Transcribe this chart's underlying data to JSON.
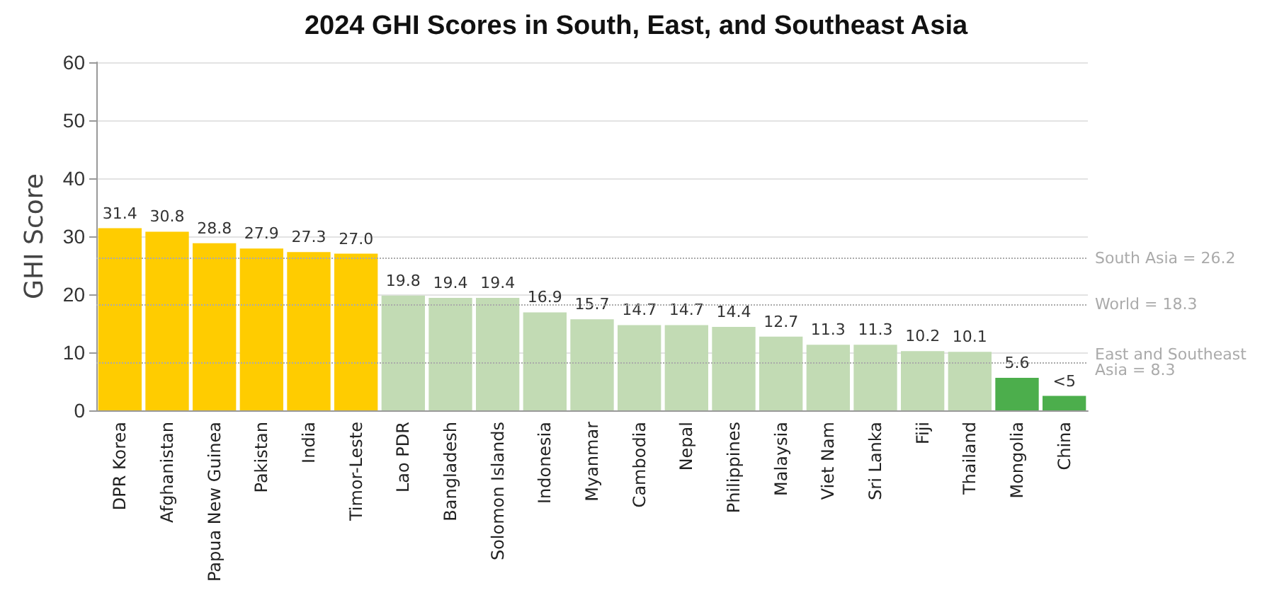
{
  "chart_data": {
    "type": "bar",
    "title": "2024 GHI Scores in South, East, and Southeast Asia",
    "ylabel": "GHI Score",
    "categories": [
      "DPR Korea",
      "Afghanistan",
      "Papua New Guinea",
      "Pakistan",
      "India",
      "Timor-Leste",
      "Lao PDR",
      "Bangladesh",
      "Solomon Islands",
      "Indonesia",
      "Myanmar",
      "Cambodia",
      "Nepal",
      "Philippines",
      "Malaysia",
      "Viet Nam",
      "Sri Lanka",
      "Fiji",
      "Thailand",
      "Mongolia",
      "China"
    ],
    "values": [
      31.4,
      30.8,
      28.8,
      27.9,
      27.3,
      27.0,
      19.8,
      19.4,
      19.4,
      16.9,
      15.7,
      14.7,
      14.7,
      14.4,
      12.7,
      11.3,
      11.3,
      10.2,
      10.1,
      5.6,
      2.5
    ],
    "value_labels": [
      "31.4",
      "30.8",
      "28.8",
      "27.9",
      "27.3",
      "27.0",
      "19.8",
      "19.4",
      "19.4",
      "16.9",
      "15.7",
      "14.7",
      "14.7",
      "14.4",
      "12.7",
      "11.3",
      "11.3",
      "10.2",
      "10.1",
      "5.6",
      "<5"
    ],
    "colors": [
      "#ffcc00",
      "#ffcc00",
      "#ffcc00",
      "#ffcc00",
      "#ffcc00",
      "#ffcc00",
      "#c2dbb4",
      "#c2dbb4",
      "#c2dbb4",
      "#c2dbb4",
      "#c2dbb4",
      "#c2dbb4",
      "#c2dbb4",
      "#c2dbb4",
      "#c2dbb4",
      "#c2dbb4",
      "#c2dbb4",
      "#c2dbb4",
      "#c2dbb4",
      "#4cae4c",
      "#4cae4c"
    ],
    "ylim": [
      0,
      60
    ],
    "yticks": [
      0,
      10,
      20,
      30,
      40,
      50,
      60
    ],
    "grid": "y",
    "ref_lines": [
      {
        "axis": "y",
        "value": 26.2,
        "label": "South Asia = 26.2",
        "color": "#aaaaaa",
        "line_style": "dotted"
      },
      {
        "axis": "y",
        "value": 18.3,
        "label": "World = 18.3",
        "color": "#aaaaaa",
        "line_style": "dotted"
      },
      {
        "axis": "y",
        "value": 8.3,
        "label": "East and Southeast Asia = 8.3",
        "color": "#aaaaaa",
        "line_style": "dotted"
      }
    ]
  }
}
